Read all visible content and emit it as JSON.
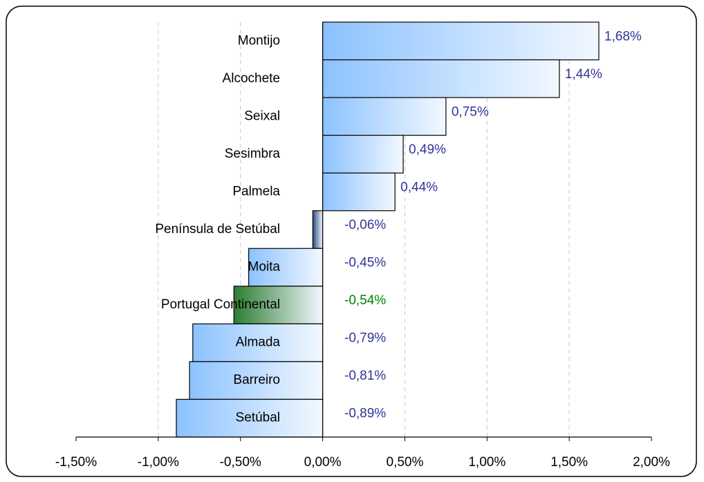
{
  "chart_data": {
    "type": "barh",
    "categories": [
      "Montijo",
      "Alcochete",
      "Seixal",
      "Sesimbra",
      "Palmela",
      "Península de Setúbal",
      "Moita",
      "Portugal Continental",
      "Almada",
      "Barreiro",
      "Setúbal"
    ],
    "values": [
      1.68,
      1.44,
      0.75,
      0.49,
      0.44,
      -0.06,
      -0.45,
      -0.54,
      -0.79,
      -0.81,
      -0.89
    ],
    "value_labels": [
      "1,68%",
      "1,44%",
      "0,75%",
      "0,49%",
      "0,44%",
      "-0,06%",
      "-0,45%",
      "-0,54%",
      "-0,79%",
      "-0,81%",
      "-0,89%"
    ],
    "colors": [
      "#8cc2ff",
      "#8cc2ff",
      "#8cc2ff",
      "#8cc2ff",
      "#8cc2ff",
      "#2a4e7e",
      "#8cc2ff",
      "#2e7d32",
      "#8cc2ff",
      "#8cc2ff",
      "#8cc2ff"
    ],
    "label_colors": [
      "#333399",
      "#333399",
      "#333399",
      "#333399",
      "#333399",
      "#333399",
      "#333399",
      "#008000",
      "#333399",
      "#333399",
      "#333399"
    ],
    "xlim": [
      -1.5,
      2.0
    ],
    "xticks": [
      {
        "value": -1.5,
        "label": "-1,50%"
      },
      {
        "value": -1.0,
        "label": "-1,00%"
      },
      {
        "value": -0.5,
        "label": "-0,50%"
      },
      {
        "value": 0,
        "label": "0,00%"
      },
      {
        "value": 0.5,
        "label": "0,50%"
      },
      {
        "value": 1.0,
        "label": "1,00%"
      },
      {
        "value": 1.5,
        "label": "1,50%"
      },
      {
        "value": 2.0,
        "label": "2,00%"
      }
    ],
    "grid": true
  }
}
